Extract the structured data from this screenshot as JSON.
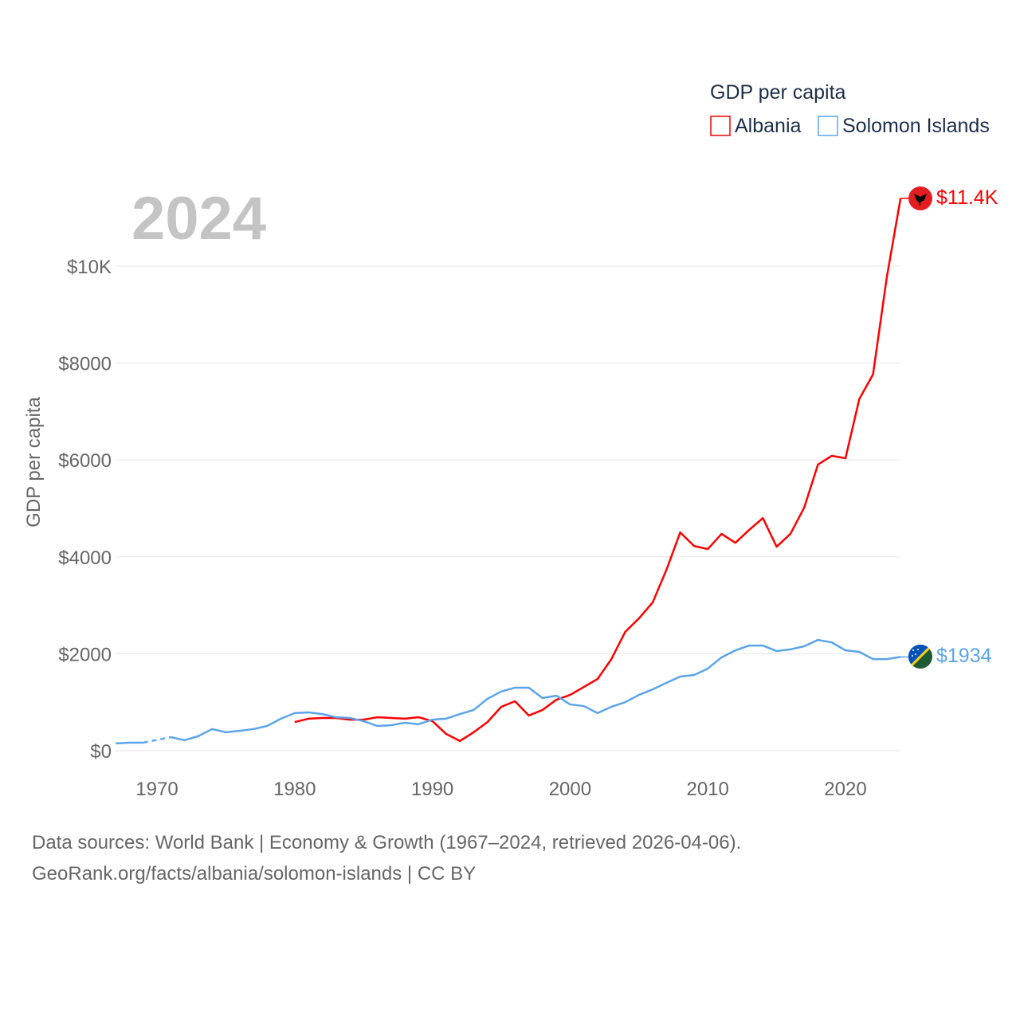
{
  "chart_data": {
    "type": "line",
    "year_label": "2024",
    "ylabel": "GDP per capita",
    "xlabel": "",
    "legend": {
      "title": "GDP per capita",
      "placement": "top-right"
    },
    "xlim": [
      1967,
      2024
    ],
    "ylim": [
      0,
      11400
    ],
    "x_ticks": [
      1970,
      1980,
      1990,
      2000,
      2010,
      2020
    ],
    "y_ticks": [
      0,
      2000,
      4000,
      6000,
      8000,
      10000
    ],
    "y_tick_labels": [
      "$0",
      "$2000",
      "$4000",
      "$6000",
      "$8000",
      "$10K"
    ],
    "grid": true,
    "x": [
      1967,
      1968,
      1969,
      1970,
      1971,
      1972,
      1973,
      1974,
      1975,
      1976,
      1977,
      1978,
      1979,
      1980,
      1981,
      1982,
      1983,
      1984,
      1985,
      1986,
      1987,
      1988,
      1989,
      1990,
      1991,
      1992,
      1993,
      1994,
      1995,
      1996,
      1997,
      1998,
      1999,
      2000,
      2001,
      2002,
      2003,
      2004,
      2005,
      2006,
      2007,
      2008,
      2009,
      2010,
      2011,
      2012,
      2013,
      2014,
      2015,
      2016,
      2017,
      2018,
      2019,
      2020,
      2021,
      2022,
      2023,
      2024
    ],
    "series": [
      {
        "name": "Albania",
        "color": "#ff0000",
        "end_label": "$11.4K",
        "flag_icon": "albania-flag",
        "values": [
          null,
          null,
          null,
          null,
          null,
          null,
          null,
          null,
          null,
          null,
          null,
          null,
          null,
          590,
          660,
          675,
          675,
          640,
          640,
          690,
          675,
          660,
          690,
          610,
          345,
          200,
          380,
          590,
          905,
          1020,
          725,
          840,
          1050,
          1150,
          1315,
          1480,
          1890,
          2450,
          2730,
          3060,
          3735,
          4505,
          4225,
          4160,
          4475,
          4290,
          4555,
          4800,
          4210,
          4475,
          5015,
          5905,
          6085,
          6035,
          7255,
          7765,
          9770,
          11400
        ]
      },
      {
        "name": "Solomon Islands",
        "color": "#5ba4ea",
        "end_label": "$1934",
        "flag_icon": "solomon-islands-flag",
        "values": [
          150,
          165,
          165,
          null,
          280,
          215,
          300,
          445,
          380,
          410,
          445,
          510,
          660,
          775,
          790,
          755,
          690,
          675,
          610,
          510,
          525,
          575,
          545,
          640,
          660,
          755,
          840,
          1070,
          1220,
          1300,
          1300,
          1085,
          1135,
          955,
          920,
          775,
          905,
          1000,
          1150,
          1265,
          1400,
          1530,
          1560,
          1695,
          1925,
          2070,
          2170,
          2170,
          2055,
          2090,
          2155,
          2285,
          2235,
          2070,
          2040,
          1890,
          1890,
          1934
        ]
      }
    ]
  },
  "footer": {
    "line1": "Data sources: World Bank | Economy & Growth (1967–2024, retrieved 2026-04-06).",
    "line2": "GeoRank.org/facts/albania/solomon-islands | CC BY"
  }
}
